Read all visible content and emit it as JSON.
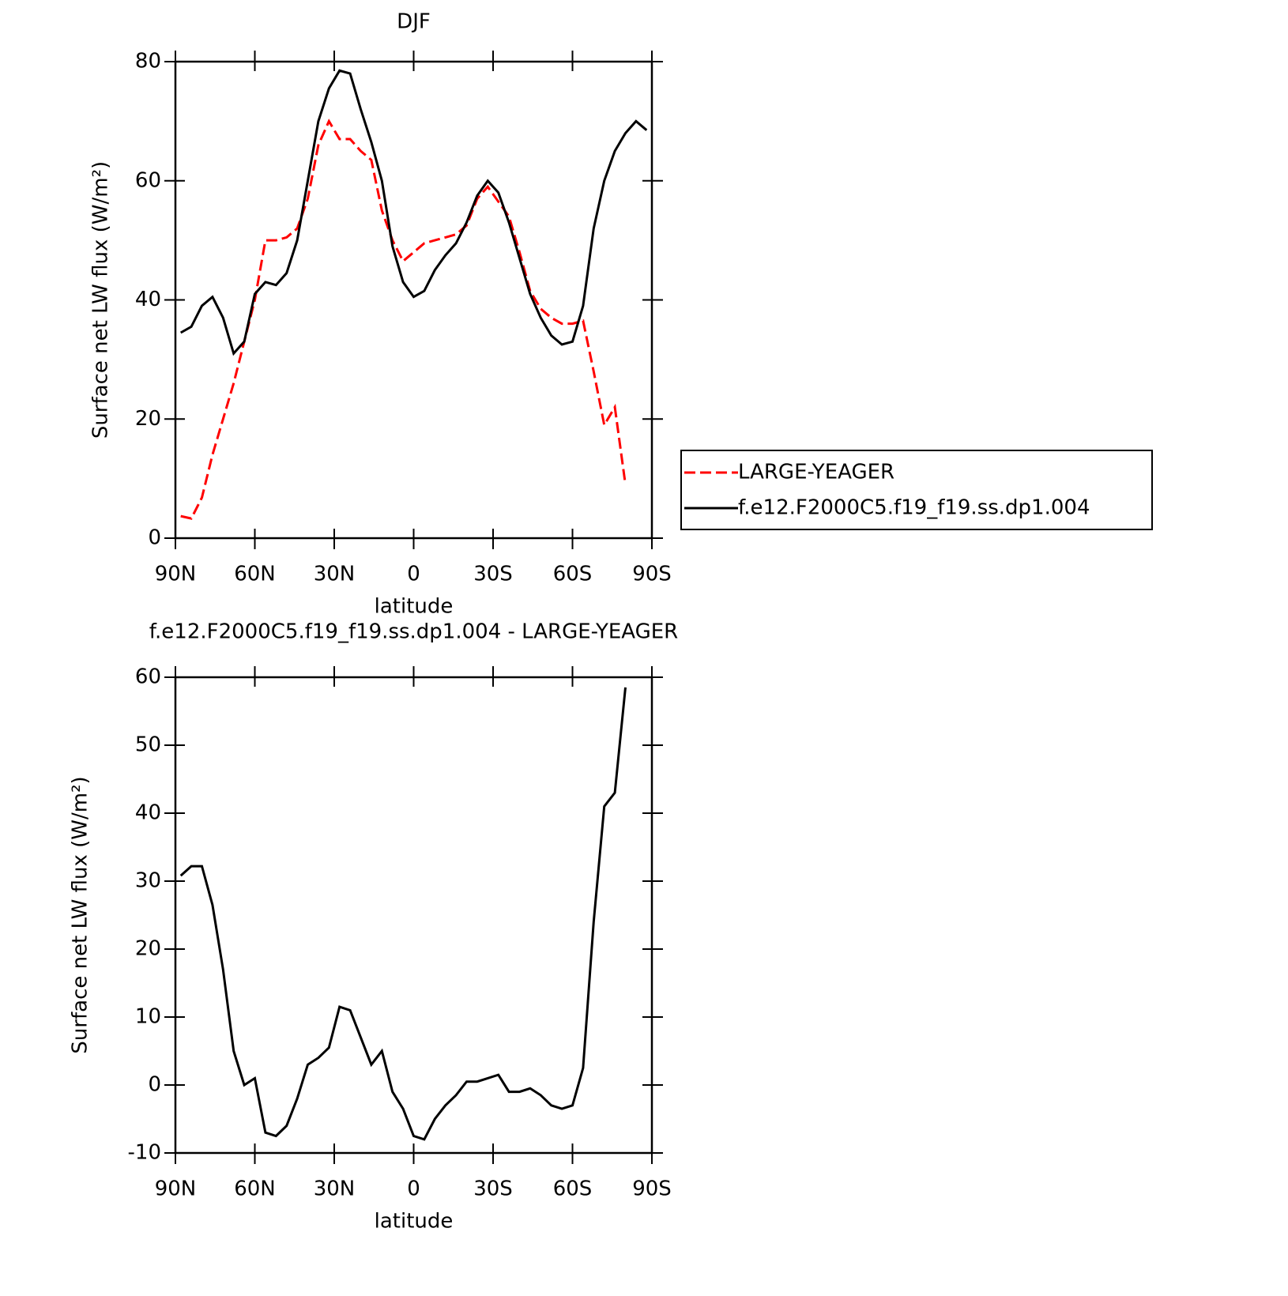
{
  "chart_data": [
    {
      "type": "line",
      "title": "DJF",
      "xlabel": "latitude",
      "ylabel": "Surface net LW flux (W/m²)",
      "x": [
        88,
        84,
        80,
        76,
        72,
        68,
        64,
        60,
        56,
        52,
        48,
        44,
        40,
        36,
        32,
        28,
        24,
        20,
        16,
        12,
        8,
        4,
        0,
        -4,
        -8,
        -12,
        -16,
        -20,
        -24,
        -28,
        -32,
        -36,
        -40,
        -44,
        -48,
        -52,
        -56,
        -60,
        -64,
        -68,
        -72,
        -76,
        -80,
        -84,
        -88
      ],
      "xlim": [
        90,
        -90
      ],
      "xticks": [
        {
          "value": 90,
          "label": "90N"
        },
        {
          "value": 60,
          "label": "60N"
        },
        {
          "value": 30,
          "label": "30N"
        },
        0,
        {
          "value": -30,
          "label": "30S"
        },
        {
          "value": -60,
          "label": "60S"
        },
        {
          "value": -90,
          "label": "90S"
        }
      ],
      "ylim": [
        0,
        80
      ],
      "yticks": [
        0,
        20,
        40,
        60,
        80
      ],
      "legend": "right",
      "series": [
        {
          "name": "LARGE-YEAGER",
          "color": "#ff0000",
          "dashed": true,
          "values": [
            3.7,
            3.3,
            6.8,
            14,
            20,
            26,
            33,
            40,
            50,
            50,
            50.5,
            52,
            57,
            66,
            70,
            67,
            67,
            65,
            63.5,
            55,
            50,
            46.5,
            48,
            49.5,
            50,
            50.5,
            51,
            52.5,
            57,
            59,
            56.5,
            54,
            48,
            41.5,
            38.5,
            37,
            36,
            36,
            36.5,
            28,
            19,
            22,
            9,
            null,
            null
          ]
        },
        {
          "name": "f.e12.F2000C5.f19_f19.ss.dp1.004",
          "color": "#000000",
          "dashed": false,
          "values": [
            34.5,
            35.5,
            39,
            40.5,
            37,
            31,
            33,
            41,
            43,
            42.5,
            44.5,
            50,
            60,
            70,
            75.5,
            78.5,
            78,
            72,
            66.5,
            60,
            49,
            43,
            40.5,
            41.5,
            45,
            47.5,
            49.5,
            53,
            57.5,
            60,
            58,
            53,
            47,
            41,
            37,
            34,
            32.5,
            33,
            39,
            52,
            60,
            65,
            68,
            70,
            68.5
          ]
        }
      ]
    },
    {
      "type": "line",
      "title": "f.e12.F2000C5.f19_f19.ss.dp1.004 - LARGE-YEAGER",
      "xlabel": "latitude",
      "ylabel": "Surface net LW flux (W/m²)",
      "x": [
        88,
        84,
        80,
        76,
        72,
        68,
        64,
        60,
        56,
        52,
        48,
        44,
        40,
        36,
        32,
        28,
        24,
        20,
        16,
        12,
        8,
        4,
        0,
        -4,
        -8,
        -12,
        -16,
        -20,
        -24,
        -28,
        -32,
        -36,
        -40,
        -44,
        -48,
        -52,
        -56,
        -60,
        -64,
        -68,
        -72,
        -76,
        -80,
        -84,
        -88
      ],
      "xlim": [
        90,
        -90
      ],
      "xticks": [
        {
          "value": 90,
          "label": "90N"
        },
        {
          "value": 60,
          "label": "60N"
        },
        {
          "value": 30,
          "label": "30N"
        },
        0,
        {
          "value": -30,
          "label": "30S"
        },
        {
          "value": -60,
          "label": "60S"
        },
        {
          "value": -90,
          "label": "90S"
        }
      ],
      "ylim": [
        -10,
        60
      ],
      "yticks": [
        -10,
        0,
        10,
        20,
        30,
        40,
        50,
        60
      ],
      "color": "#000000",
      "values": [
        30.8,
        32.2,
        32.2,
        26.5,
        17,
        5,
        0,
        1,
        -7,
        -7.5,
        -6,
        -2,
        3,
        4,
        5.5,
        11.5,
        11,
        7,
        3,
        5,
        -1,
        -3.5,
        -7.5,
        -8,
        -5,
        -3,
        -1.5,
        0.5,
        0.5,
        1,
        1.5,
        -1,
        -1,
        -0.5,
        -1.5,
        -3,
        -3.5,
        -3,
        2.5,
        24,
        41,
        43,
        58.5,
        null,
        null
      ]
    }
  ]
}
